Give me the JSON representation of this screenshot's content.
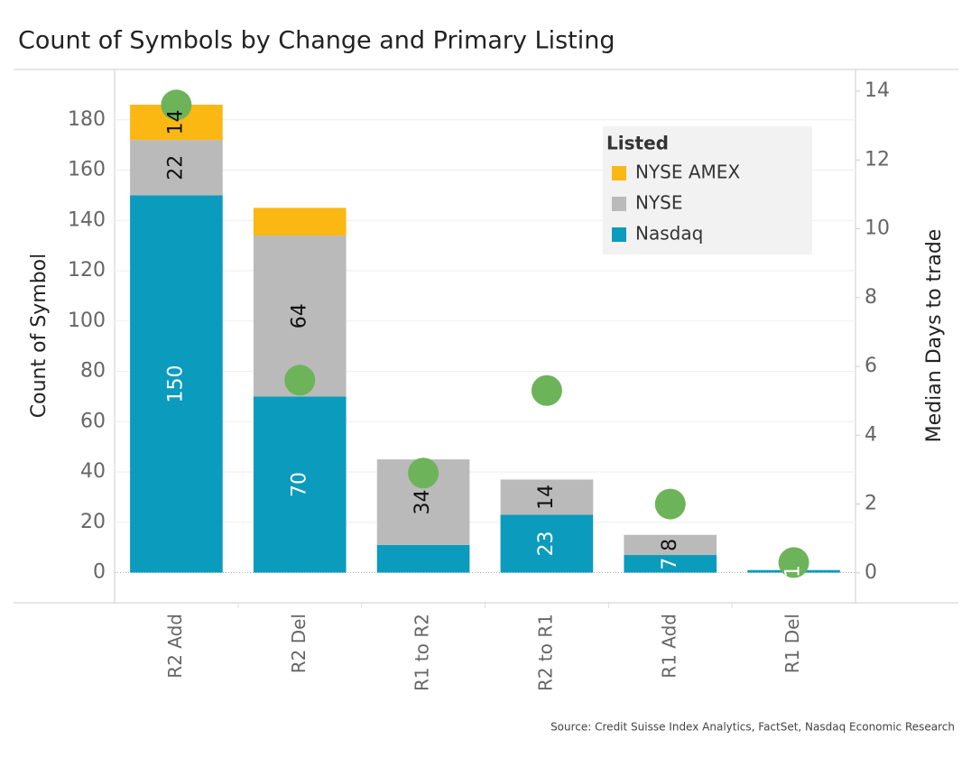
{
  "chart_data": {
    "type": "bar",
    "stacked": true,
    "title": "Count of Symbols by Change and Primary Listing",
    "source": "Source: Credit Suisse Index Analytics, FactSet, Nasdaq Economic Research",
    "y_label": "Count of Symbol",
    "y2_label": "Median Days to trade",
    "legend_title": "Listed",
    "categories": [
      "R2 Add",
      "R2 Del",
      "R1 to R2",
      "R2 to R1",
      "R1 Add",
      "R1 Del"
    ],
    "series": [
      {
        "name": "Nasdaq",
        "color": "#0b9bbd",
        "values": [
          150,
          70,
          11,
          23,
          7,
          1
        ],
        "value_labels": [
          "150",
          "70",
          null,
          "23",
          "7",
          "1"
        ]
      },
      {
        "name": "NYSE",
        "color": "#bababa",
        "values": [
          22,
          64,
          34,
          14,
          8,
          0
        ],
        "value_labels": [
          "22",
          "64",
          "34",
          "14",
          "8",
          null
        ]
      },
      {
        "name": "NYSE AMEX",
        "color": "#fbb812",
        "values": [
          14,
          11,
          0,
          0,
          0,
          0
        ],
        "value_labels": [
          "14",
          null,
          null,
          null,
          null,
          null
        ]
      },
      {
        "type": "scatter",
        "axis": "y2",
        "color": "#6db35a",
        "values": [
          13.6,
          5.6,
          2.9,
          5.3,
          2.0,
          0.3
        ]
      }
    ],
    "ylim": [
      -12,
      200
    ],
    "yticks": [
      0,
      20,
      40,
      60,
      80,
      100,
      120,
      140,
      160,
      180
    ],
    "y2lim": [
      -0.87,
      14.63
    ],
    "y2ticks": [
      0,
      2,
      4,
      6,
      8,
      10,
      12,
      14
    ],
    "grid": true,
    "legend": "upper right"
  }
}
